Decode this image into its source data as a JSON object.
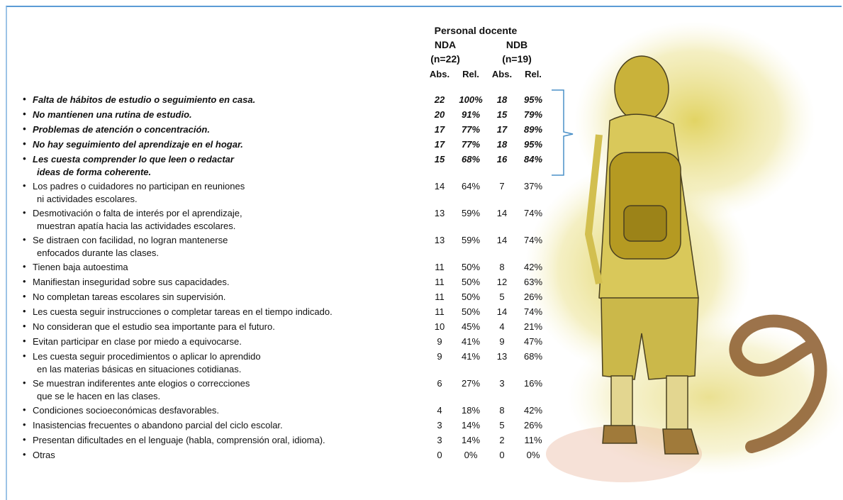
{
  "table": {
    "header": {
      "title": "Personal docente",
      "groups": [
        {
          "name": "NDA",
          "n": "(n=22)"
        },
        {
          "name": "NDB",
          "n": "(n=19)"
        }
      ],
      "columns": [
        "Abs.",
        "Rel.",
        "Abs.",
        "Rel."
      ]
    },
    "bullet": "•",
    "rows": [
      {
        "emphasized": true,
        "lines": [
          "Falta de hábitos de estudio o seguimiento en casa."
        ],
        "cells": [
          "22",
          "100%",
          "18",
          "95%"
        ]
      },
      {
        "emphasized": true,
        "lines": [
          "No mantienen una rutina de estudio."
        ],
        "cells": [
          "20",
          "91%",
          "15",
          "79%"
        ]
      },
      {
        "emphasized": true,
        "lines": [
          "Problemas de atención o concentración."
        ],
        "cells": [
          "17",
          "77%",
          "17",
          "89%"
        ]
      },
      {
        "emphasized": true,
        "lines": [
          "No hay seguimiento del aprendizaje en el hogar."
        ],
        "cells": [
          "17",
          "77%",
          "18",
          "95%"
        ]
      },
      {
        "emphasized": true,
        "lines": [
          "Les cuesta comprender lo que leen o redactar",
          "ideas de forma coherente."
        ],
        "cells": [
          "15",
          "68%",
          "16",
          "84%"
        ]
      },
      {
        "emphasized": false,
        "lines": [
          "Los padres o cuidadores no participan en reuniones",
          "ni actividades escolares."
        ],
        "cells": [
          "14",
          "64%",
          "7",
          "37%"
        ]
      },
      {
        "emphasized": false,
        "lines": [
          "Desmotivación o falta de interés por el aprendizaje,",
          "muestran apatía hacia las actividades escolares."
        ],
        "cells": [
          "13",
          "59%",
          "14",
          "74%"
        ]
      },
      {
        "emphasized": false,
        "lines": [
          "Se distraen con facilidad, no logran mantenerse",
          "enfocados durante las clases."
        ],
        "cells": [
          "13",
          "59%",
          "14",
          "74%"
        ]
      },
      {
        "emphasized": false,
        "lines": [
          "Tienen baja autoestima"
        ],
        "cells": [
          "11",
          "50%",
          "8",
          "42%"
        ]
      },
      {
        "emphasized": false,
        "lines": [
          "Manifiestan inseguridad sobre sus capacidades."
        ],
        "cells": [
          "11",
          "50%",
          "12",
          "63%"
        ]
      },
      {
        "emphasized": false,
        "lines": [
          "No completan tareas escolares sin supervisión."
        ],
        "cells": [
          "11",
          "50%",
          "5",
          "26%"
        ]
      },
      {
        "emphasized": false,
        "lines": [
          "Les cuesta seguir instrucciones o completar tareas en el tiempo indicado."
        ],
        "cells": [
          "11",
          "50%",
          "14",
          "74%"
        ]
      },
      {
        "emphasized": false,
        "lines": [
          "No consideran que el estudio sea importante para el futuro."
        ],
        "cells": [
          "10",
          "45%",
          "4",
          "21%"
        ]
      },
      {
        "emphasized": false,
        "lines": [
          "Evitan participar en clase por miedo a equivocarse."
        ],
        "cells": [
          "9",
          "41%",
          "9",
          "47%"
        ]
      },
      {
        "emphasized": false,
        "lines": [
          "Les cuesta seguir procedimientos o aplicar lo aprendido",
          "en las materias básicas en situaciones cotidianas."
        ],
        "cells": [
          "9",
          "41%",
          "13",
          "68%"
        ]
      },
      {
        "emphasized": false,
        "lines": [
          "Se muestran indiferentes ante elogios o correcciones",
          "que se le hacen en las clases."
        ],
        "cells": [
          "6",
          "27%",
          "3",
          "16%"
        ]
      },
      {
        "emphasized": false,
        "lines": [
          "Condiciones socioeconómicas desfavorables."
        ],
        "cells": [
          "4",
          "18%",
          "8",
          "42%"
        ]
      },
      {
        "emphasized": false,
        "lines": [
          "Inasistencias frecuentes o abandono parcial del ciclo escolar."
        ],
        "cells": [
          "3",
          "14%",
          "5",
          "26%"
        ]
      },
      {
        "emphasized": false,
        "lines": [
          "Presentan dificultades en el lenguaje (habla, comprensión oral, idioma)."
        ],
        "cells": [
          "3",
          "14%",
          "2",
          "11%"
        ]
      },
      {
        "emphasized": false,
        "lines": [
          "Otras"
        ],
        "cells": [
          "0",
          "0%",
          "0",
          "0%"
        ]
      }
    ]
  }
}
